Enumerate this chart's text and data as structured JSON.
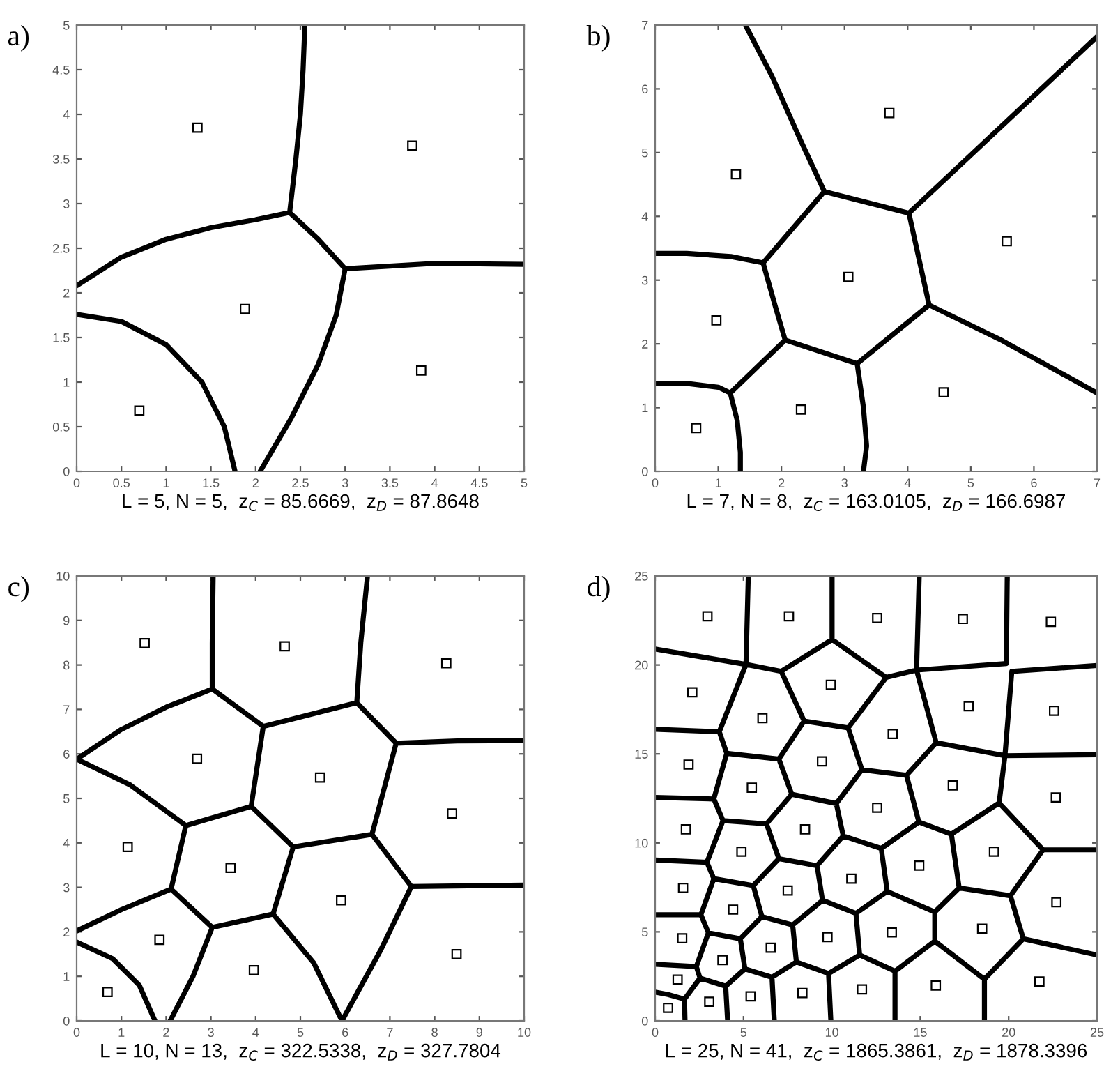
{
  "chart_data": [
    {
      "type": "scatter",
      "title": "a)",
      "xlabel": "L = 5, N = 5,  z$_{C}$ = 85.6669,  z$_{D}$ = 87.8648",
      "xlim": [
        0,
        5
      ],
      "ylim": [
        0,
        5
      ],
      "xticks": [
        0,
        0.5,
        1,
        1.5,
        2,
        2.5,
        3,
        3.5,
        4,
        4.5,
        5
      ],
      "yticks": [
        0,
        0.5,
        1,
        1.5,
        2,
        2.5,
        3,
        3.5,
        4,
        4.5,
        5
      ],
      "series": [
        {
          "marker": "square",
          "color": "#000000",
          "x": [
            0.7,
            1.35,
            1.88,
            3.75,
            3.85
          ],
          "values": [
            0.68,
            3.85,
            1.82,
            3.65,
            1.13
          ]
        },
        {
          "type": "line",
          "marker": "none",
          "line_style": "solid",
          "color": "#000000",
          "x": [
            0,
            0.5,
            1.0,
            1.4,
            1.65,
            1.77,
            null,
            0,
            0.5,
            1.0,
            1.5,
            2.0,
            2.38,
            2.45,
            2.5,
            2.53,
            2.55,
            null,
            2.38,
            2.7,
            3.0,
            3.5,
            4.0,
            5,
            null,
            3.0,
            2.9,
            2.7,
            2.4,
            2.05
          ],
          "values": [
            1.76,
            1.68,
            1.42,
            1.0,
            0.5,
            0,
            null,
            2.08,
            2.4,
            2.6,
            2.73,
            2.82,
            2.9,
            3.5,
            4.0,
            4.5,
            5,
            null,
            2.9,
            2.6,
            2.27,
            2.3,
            2.33,
            2.32,
            null,
            2.27,
            1.75,
            1.2,
            0.6,
            0
          ]
        }
      ]
    },
    {
      "type": "scatter",
      "title": "b)",
      "xlabel": "L = 7, N = 8,  z$_{C}$ = 163.0105,  z$_{D}$ = 166.6987",
      "xlim": [
        0,
        7
      ],
      "ylim": [
        0,
        7
      ],
      "xticks": [
        0,
        1,
        2,
        3,
        4,
        5,
        6,
        7
      ],
      "yticks": [
        0,
        1,
        2,
        3,
        4,
        5,
        6,
        7
      ],
      "series": [
        {
          "marker": "square",
          "color": "#000000",
          "x": [
            0.65,
            0.97,
            1.28,
            2.31,
            3.06,
            3.71,
            4.57,
            5.57
          ],
          "values": [
            0.68,
            2.37,
            4.66,
            0.97,
            3.05,
            5.62,
            1.24,
            3.61
          ]
        },
        {
          "type": "line",
          "marker": "none",
          "line_style": "solid",
          "color": "#000000",
          "x": [
            0,
            0.5,
            1.0,
            1.19,
            1.3,
            1.35,
            1.35,
            null,
            1.19,
            2.06,
            1.9,
            1.71,
            1.2,
            0.5,
            0,
            null,
            1.71,
            2.68,
            2.3,
            1.85,
            1.43,
            null,
            2.68,
            4.02,
            7,
            null,
            4.02,
            4.34,
            5.5,
            7,
            null,
            4.34,
            3.2,
            2.06,
            null,
            3.2,
            3.3,
            3.35,
            3.3
          ],
          "values": [
            1.38,
            1.38,
            1.32,
            1.23,
            0.8,
            0.3,
            0,
            null,
            1.23,
            2.06,
            2.6,
            3.27,
            3.37,
            3.42,
            3.42,
            null,
            3.27,
            4.39,
            5.2,
            6.2,
            7.0,
            null,
            4.39,
            4.05,
            6.82,
            null,
            4.05,
            2.61,
            2.05,
            1.23,
            null,
            2.61,
            1.69,
            2.06,
            null,
            1.69,
            1.0,
            0.4,
            0
          ]
        }
      ]
    },
    {
      "type": "scatter",
      "title": "c)",
      "xlabel": "L = 10, N = 13,  z$_{C}$ = 322.5338,  z$_{D}$ = 327.7804",
      "xlim": [
        0,
        10
      ],
      "ylim": [
        0,
        10
      ],
      "xticks": [
        0,
        1,
        2,
        3,
        4,
        5,
        6,
        7,
        8,
        9,
        10
      ],
      "yticks": [
        0,
        1,
        2,
        3,
        4,
        5,
        6,
        7,
        8,
        9,
        10
      ],
      "series": [
        {
          "marker": "square",
          "color": "#000000",
          "x": [
            0.69,
            1.85,
            3.96,
            1.14,
            3.44,
            5.91,
            8.49,
            8.39,
            5.44,
            2.69,
            1.52,
            4.65,
            8.26
          ],
          "values": [
            0.65,
            1.82,
            1.14,
            3.91,
            3.44,
            2.71,
            1.5,
            4.66,
            5.47,
            5.89,
            8.49,
            8.42,
            8.04
          ]
        },
        {
          "type": "line",
          "marker": "none",
          "line_style": "solid",
          "color": "#000000",
          "x": [
            3.05,
            3.03,
            3.03,
            null,
            0,
            1,
            2,
            3.03,
            4.17,
            6.26,
            7.14,
            8.5,
            10,
            null,
            6.5,
            6.35,
            6.26,
            null,
            4.17,
            3.9,
            2.44,
            2.11,
            3.03,
            4.39,
            4.84,
            6.6,
            7.48,
            10,
            null,
            3.9,
            4.84,
            null,
            7.14,
            6.6,
            null,
            0,
            1.2,
            2.44,
            null,
            7.48,
            6.8,
            5.93,
            5.3,
            4.39,
            null,
            2.11,
            1,
            0,
            null,
            3.03,
            2.6,
            2.09,
            null,
            0,
            0.8,
            1.4,
            1.75
          ],
          "values": [
            10,
            8.5,
            7.46,
            null,
            5.88,
            6.55,
            7.05,
            7.46,
            6.62,
            7.15,
            6.24,
            6.29,
            6.3,
            null,
            10,
            8.5,
            7.15,
            null,
            6.62,
            4.82,
            4.39,
            2.96,
            2.1,
            2.4,
            3.91,
            4.19,
            3.02,
            3.05,
            null,
            4.82,
            3.91,
            null,
            6.24,
            4.19,
            null,
            5.88,
            5.3,
            4.39,
            null,
            3.02,
            1.6,
            0,
            1.3,
            2.4,
            null,
            2.96,
            2.5,
            2.02,
            null,
            2.1,
            1.0,
            0,
            null,
            1.77,
            1.4,
            0.8,
            0
          ]
        }
      ]
    },
    {
      "type": "scatter",
      "title": "d)",
      "xlabel": "L = 25, N = 41,  z$_{C}$ = 1865.3861,  z$_{D}$ = 1878.3396",
      "xlim": [
        0,
        25
      ],
      "ylim": [
        0,
        25
      ],
      "xticks": [
        0,
        5,
        10,
        15,
        20,
        25
      ],
      "yticks": [
        0,
        5,
        10,
        15,
        20,
        25
      ],
      "series": [
        {
          "marker": "square",
          "color": "#000000",
          "x": [
            2.96,
            7.57,
            12.56,
            17.41,
            22.39,
            2.1,
            9.94,
            17.74,
            22.57,
            6.07,
            13.44,
            1.89,
            9.44,
            5.47,
            16.84,
            22.67,
            12.56,
            1.74,
            8.48,
            4.88,
            19.17,
            14.94,
            1.58,
            7.5,
            11.1,
            22.7,
            4.41,
            1.53,
            9.75,
            13.39,
            18.5,
            6.54,
            3.81,
            1.27,
            21.74,
            15.88,
            11.7,
            8.33,
            5.4,
            3.06,
            0.73
          ],
          "values": [
            22.73,
            22.73,
            22.63,
            22.58,
            22.42,
            18.46,
            18.88,
            17.68,
            17.42,
            17.01,
            16.12,
            14.4,
            14.58,
            13.1,
            13.23,
            12.55,
            11.98,
            10.76,
            10.76,
            9.51,
            9.51,
            8.72,
            7.47,
            7.32,
            7.99,
            6.67,
            6.25,
            4.64,
            4.71,
            4.97,
            5.18,
            4.11,
            3.41,
            2.32,
            2.21,
            1.98,
            1.77,
            1.56,
            1.38,
            1.07,
            0.73
          ]
        },
        {
          "type": "line",
          "marker": "none",
          "line_style": "solid",
          "color": "#000000",
          "x": [
            5.27,
            5.14,
            null,
            10.01,
            10.01,
            null,
            14.94,
            14.79,
            null,
            19.92,
            19.87,
            14.79,
            null,
            0,
            5.14,
            7.13,
            10.01,
            13.07,
            14.79,
            15.9,
            19.79,
            25,
            null,
            20.18,
            25,
            null,
            20.18,
            19.79,
            19.46,
            16.76,
            14.92,
            14.22,
            15.9,
            null,
            5.14,
            3.63,
            0,
            null,
            3.63,
            4.05,
            7.0,
            8.43,
            7.13,
            null,
            8.43,
            10.92,
            13.07,
            null,
            10.92,
            11.7,
            14.22,
            null,
            11.7,
            10.25,
            7.73,
            7.0,
            null,
            4.05,
            3.32,
            0,
            null,
            3.32,
            3.84,
            6.3,
            7.73,
            null,
            6.3,
            7.0,
            9.16,
            10.64,
            10.25,
            null,
            10.64,
            12.79,
            14.92,
            null,
            19.46,
            21.95,
            25,
            null,
            21.95,
            20.1,
            17.2,
            16.76,
            null,
            20.1,
            20.83,
            25,
            null,
            20.83,
            18.63,
            18.63,
            null,
            17.2,
            15.82,
            13.13,
            12.79,
            null,
            15.82,
            15.82,
            18.63,
            null,
            15.82,
            13.57,
            13.57,
            null,
            13.13,
            11.36,
            9.47,
            9.16,
            null,
            11.36,
            11.57,
            13.57,
            null,
            11.57,
            9.81,
            9.94,
            null,
            9.81,
            7.99,
            7.78,
            9.47,
            null,
            7.78,
            6.04,
            5.55,
            7.0,
            null,
            0,
            2.93,
            3.84,
            null,
            2.93,
            3.32,
            5.55,
            null,
            3.32,
            2.59,
            0,
            null,
            2.59,
            3.01,
            4.82,
            6.04,
            null,
            4.82,
            5.08,
            6.61,
            7.99,
            null,
            6.61,
            6.74,
            null,
            3.01,
            2.33,
            0,
            null,
            2.33,
            2.54,
            3.99,
            5.08,
            null,
            3.99,
            4.1,
            null,
            2.54,
            1.66,
            1.69,
            null,
            1.66,
            0.73,
            0
          ],
          "values": [
            25,
            20.03,
            null,
            25,
            21.43,
            null,
            25,
            19.71,
            null,
            25,
            20.08,
            19.71,
            null,
            20.89,
            20.03,
            19.64,
            21.43,
            19.3,
            19.71,
            15.63,
            14.9,
            14.95,
            null,
            19.64,
            19.97,
            null,
            19.64,
            14.9,
            12.24,
            10.49,
            11.17,
            13.8,
            15.63,
            null,
            20.03,
            16.25,
            16.38,
            null,
            16.25,
            15.03,
            14.71,
            16.85,
            19.64,
            null,
            16.85,
            16.46,
            19.3,
            null,
            16.46,
            14.11,
            13.8,
            null,
            14.11,
            12.21,
            12.73,
            14.71,
            null,
            15.03,
            12.47,
            12.55,
            null,
            12.47,
            11.25,
            11.07,
            12.73,
            null,
            11.07,
            9.11,
            8.72,
            10.39,
            12.21,
            null,
            10.39,
            9.69,
            11.17,
            null,
            12.24,
            9.61,
            9.61,
            null,
            9.61,
            7.03,
            7.47,
            10.49,
            null,
            7.03,
            4.61,
            3.7,
            null,
            4.61,
            2.34,
            0,
            null,
            7.47,
            6.12,
            7.27,
            9.69,
            null,
            6.12,
            4.48,
            2.34,
            null,
            4.48,
            2.79,
            0,
            null,
            7.27,
            6.04,
            6.77,
            8.72,
            null,
            6.04,
            3.7,
            2.79,
            null,
            3.7,
            2.66,
            0,
            null,
            2.66,
            3.31,
            5.39,
            6.77,
            null,
            5.39,
            5.86,
            7.6,
            9.11,
            null,
            9.04,
            8.91,
            11.25,
            null,
            8.91,
            7.99,
            7.6,
            null,
            7.99,
            5.96,
            5.96,
            null,
            5.96,
            4.95,
            4.61,
            5.86,
            null,
            4.61,
            2.92,
            2.45,
            3.31,
            null,
            2.45,
            0,
            null,
            4.95,
            3.05,
            3.18,
            null,
            3.05,
            2.4,
            1.95,
            2.92,
            null,
            1.95,
            0,
            null,
            2.4,
            1.22,
            0,
            null,
            1.22,
            1.48,
            1.61
          ]
        }
      ]
    }
  ]
}
